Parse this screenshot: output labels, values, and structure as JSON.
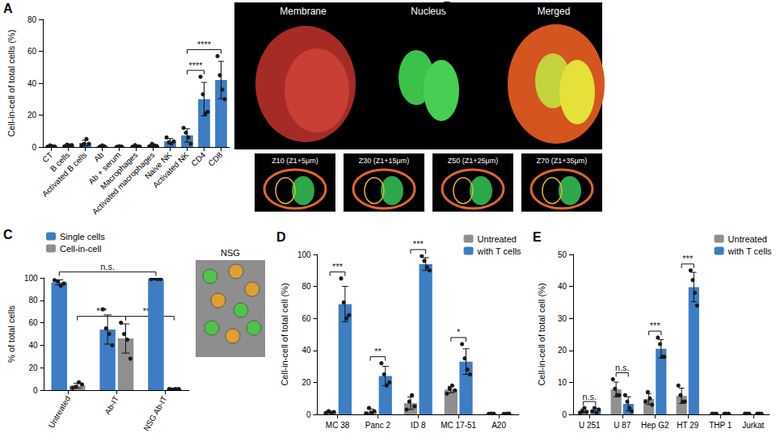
{
  "chart_data": [
    {
      "panel": "A",
      "type": "bar",
      "y_label": "Cell-in-cell of total cells (%)",
      "categories": [
        "CT",
        "B cells",
        "Activated B cells",
        "Ab",
        "Ab + serum",
        "Macrophages",
        "Activated macrophages",
        "Naive NK",
        "Activated NK",
        "CD4",
        "CD8"
      ],
      "values": [
        0.5,
        1,
        2.5,
        0.5,
        0.3,
        0.5,
        1,
        3.6,
        7.3,
        30,
        42
      ],
      "errors": [
        0.4,
        0.5,
        1.8,
        0.4,
        0.2,
        0.5,
        0.7,
        1.7,
        4.2,
        10.5,
        11.7
      ],
      "points": [
        [
          0.2,
          1,
          0.5,
          0.3
        ],
        [
          0.5,
          1.5,
          1,
          1.2
        ],
        [
          1,
          2,
          5,
          2
        ],
        [
          0.2,
          1,
          0.4
        ],
        [
          0.1,
          0.5,
          0.3
        ],
        [
          0.2,
          1.2,
          0.4,
          0.3
        ],
        [
          0.5,
          2,
          1,
          0.6
        ],
        [
          6,
          3,
          2,
          3.5
        ],
        [
          12,
          9,
          6,
          2
        ],
        [
          44,
          33,
          21,
          22
        ],
        [
          57,
          45,
          36,
          30
        ]
      ],
      "color": "#3d7dc4",
      "ylim": [
        0,
        80
      ],
      "yticks": [
        0,
        20,
        40,
        60,
        80
      ],
      "grid": false,
      "significance": [
        {
          "from": [
            "Activated NK"
          ],
          "to": [
            "CD4"
          ],
          "label": "****"
        },
        {
          "from": [
            "Activated NK"
          ],
          "to": [
            "CD8"
          ],
          "label": "****"
        }
      ]
    },
    {
      "panel": "C",
      "type": "bar",
      "y_label": "% of total cells",
      "image_label": "NSG",
      "categories": [
        "Untreated",
        "Ab-IT",
        "NSG Ab-IT"
      ],
      "series": [
        {
          "name": "Single cells",
          "color": "#3d7dc4",
          "values": [
            96,
            54,
            99
          ],
          "errors": [
            2.2,
            13,
            0.5
          ],
          "points": [
            [
              98,
              97,
              93,
              95
            ],
            [
              72,
              55,
              50,
              40
            ],
            [
              99,
              99.5,
              99,
              99
            ]
          ]
        },
        {
          "name": "Cell-in-cell",
          "color": "#8f8f8f",
          "values": [
            4,
            46,
            1
          ],
          "errors": [
            2.2,
            13,
            0.5
          ],
          "points": [
            [
              2,
              3,
              7,
              5
            ],
            [
              60,
              50,
              45,
              28
            ],
            [
              1,
              0.5,
              1,
              1
            ]
          ]
        }
      ],
      "ylim": [
        0,
        100
      ],
      "yticks": [
        0,
        20,
        40,
        60,
        80,
        100
      ],
      "grid": false,
      "legend": "upper left",
      "significance": [
        {
          "from": [
            "Untreated",
            "Single cells"
          ],
          "to": [
            "NSG Ab-IT",
            "Single cells"
          ],
          "label": "n.s."
        },
        {
          "from": [
            "Untreated",
            "Cell-in-cell"
          ],
          "to": [
            "Ab-IT",
            "Cell-in-cell"
          ],
          "label": "***"
        },
        {
          "from": [
            "Ab-IT",
            "Cell-in-cell"
          ],
          "to": [
            "NSG Ab-IT",
            "Cell-in-cell"
          ],
          "label": "****"
        }
      ]
    },
    {
      "panel": "D",
      "type": "bar",
      "y_label": "Cell-in-cell of total cell (%)",
      "categories": [
        "MC 38",
        "Panc 2",
        "ID 8",
        "MC 17-51",
        "A20"
      ],
      "series": [
        {
          "name": "Untreated",
          "color": "#8f8f8f",
          "values": [
            1.4,
            1.9,
            7,
            15.5,
            0.4
          ],
          "errors": [
            0.5,
            1.5,
            3.9,
            2,
            0.1
          ],
          "points": [
            [
              1,
              2,
              1,
              1.5
            ],
            [
              0.5,
              4,
              1,
              2
            ],
            [
              3,
              8,
              12,
              5
            ],
            [
              13,
              16,
              18,
              15
            ],
            [
              0.3,
              0.5,
              0.4
            ]
          ]
        },
        {
          "name": "with T cells",
          "color": "#3d7dc4",
          "values": [
            69,
            24,
            94,
            33,
            0.4
          ],
          "errors": [
            11,
            6,
            4,
            8,
            0.1
          ],
          "points": [
            [
              85,
              70,
              60,
              62
            ],
            [
              32,
              25,
              18,
              20
            ],
            [
              99,
              96,
              92,
              90
            ],
            [
              44,
              35,
              28,
              25
            ],
            [
              0.3,
              0.4,
              0.5
            ]
          ]
        }
      ],
      "ylim": [
        0,
        100
      ],
      "yticks": [
        0,
        20,
        40,
        60,
        80,
        100
      ],
      "grid": false,
      "legend": "upper right",
      "significance": [
        {
          "from": [
            "MC 38",
            "Untreated"
          ],
          "to": [
            "MC 38",
            "with T cells"
          ],
          "label": "***"
        },
        {
          "from": [
            "Panc 2",
            "Untreated"
          ],
          "to": [
            "Panc 2",
            "with T cells"
          ],
          "label": "**"
        },
        {
          "from": [
            "ID 8",
            "Untreated"
          ],
          "to": [
            "ID 8",
            "with T cells"
          ],
          "label": "***"
        },
        {
          "from": [
            "MC 17-51",
            "Untreated"
          ],
          "to": [
            "MC 17-51",
            "with T cells"
          ],
          "label": "*"
        }
      ]
    },
    {
      "panel": "E",
      "type": "bar",
      "y_label": "Cell-in-cell of total cell (%)",
      "categories": [
        "U 251",
        "U 87",
        "Hep G2",
        "HT 29",
        "THP 1",
        "Jurkat"
      ],
      "series": [
        {
          "name": "Untreated",
          "color": "#8f8f8f",
          "values": [
            1.1,
            7.8,
            4.8,
            5.8,
            0.2,
            0.2
          ],
          "errors": [
            0.6,
            2.3,
            1.7,
            2.4,
            0.05,
            0.05
          ],
          "points": [
            [
              0.5,
              1,
              2,
              0.8
            ],
            [
              11,
              8,
              6,
              6
            ],
            [
              4,
              7,
              5,
              3
            ],
            [
              9,
              6,
              4,
              4
            ],
            [
              0.2,
              0.2,
              0.2
            ],
            [
              0.2,
              0.2,
              0.2
            ]
          ]
        },
        {
          "name": "with T cells",
          "color": "#3d7dc4",
          "values": [
            1.3,
            3.3,
            20.5,
            39.8,
            0.2,
            0.2
          ],
          "errors": [
            0.6,
            2.2,
            2.9,
            4.6,
            0.05,
            0.05
          ],
          "points": [
            [
              1,
              2,
              0.5,
              1.5
            ],
            [
              6,
              4,
              2,
              1
            ],
            [
              24,
              22,
              18,
              18
            ],
            [
              45,
              42,
              38,
              34
            ],
            [
              0.2,
              0.2,
              0.2
            ],
            [
              0.2,
              0.2,
              0.2
            ]
          ]
        }
      ],
      "ylim": [
        0,
        50
      ],
      "yticks": [
        0,
        10,
        20,
        30,
        40,
        50
      ],
      "grid": false,
      "legend": "upper right",
      "significance": [
        {
          "from": [
            "U 251",
            "Untreated"
          ],
          "to": [
            "U 251",
            "with T cells"
          ],
          "label": "n.s."
        },
        {
          "from": [
            "U 87",
            "Untreated"
          ],
          "to": [
            "U 87",
            "with T cells"
          ],
          "label": "n.s."
        },
        {
          "from": [
            "Hep G2",
            "Untreated"
          ],
          "to": [
            "Hep G2",
            "with T cells"
          ],
          "label": "***"
        },
        {
          "from": [
            "HT 29",
            "Untreated"
          ],
          "to": [
            "HT 29",
            "with T cells"
          ],
          "label": "***"
        }
      ]
    }
  ],
  "images": {
    "panel": "B",
    "headers": [
      "Membrane",
      "Nucleus",
      "Merged"
    ],
    "slices": [
      "Z10 (Z1+5μm)",
      "Z30 (Z1+15μm)",
      "Z50 (Z1+25μm)",
      "Z70 (Z1+35μm)"
    ]
  }
}
